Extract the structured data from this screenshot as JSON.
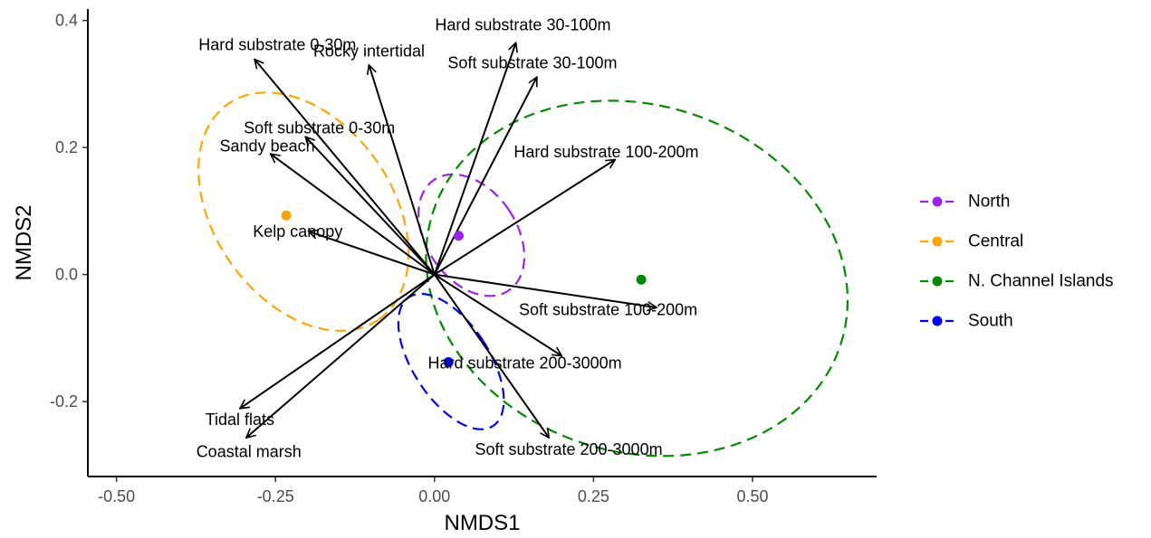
{
  "chart_data": {
    "type": "scatter",
    "xlabel": "NMDS1",
    "ylabel": "NMDS2",
    "xlim": [
      -0.545,
      0.695
    ],
    "ylim": [
      -0.318,
      0.418
    ],
    "x_ticks": [
      -0.5,
      -0.25,
      0.0,
      0.25,
      0.5
    ],
    "x_tick_labels": [
      "-0.50",
      "-0.25",
      "0.00",
      "0.25",
      "0.50"
    ],
    "y_ticks": [
      -0.2,
      0.0,
      0.2,
      0.4
    ],
    "y_tick_labels": [
      "-0.2",
      "0.0",
      "0.2",
      "0.4"
    ],
    "grid": false,
    "legend_position": "right",
    "series": [
      {
        "name": "North",
        "color": "#a020f0",
        "centroid": [
          0.038,
          0.061
        ],
        "ellipse": {
          "cx": 0.058,
          "cy": 0.062,
          "rx": 0.071,
          "ry": 0.105,
          "angle_deg": 34
        }
      },
      {
        "name": "Central",
        "color": "#ffa500",
        "centroid": [
          -0.233,
          0.093
        ],
        "ellipse": {
          "cx": -0.206,
          "cy": 0.099,
          "rx": 0.207,
          "ry": 0.14,
          "angle_deg": -55
        }
      },
      {
        "name": "N. Channel Islands",
        "color": "#008b00",
        "centroid": [
          0.325,
          -0.008
        ],
        "ellipse": {
          "cx": 0.318,
          "cy": -0.006,
          "rx": 0.337,
          "ry": 0.273,
          "angle_deg": -18
        }
      },
      {
        "name": "South",
        "color": "#0000ff",
        "centroid": [
          0.022,
          -0.138
        ],
        "ellipse": {
          "cx": 0.026,
          "cy": -0.137,
          "rx": 0.06,
          "ry": 0.121,
          "angle_deg": 33
        }
      }
    ],
    "vectors": [
      {
        "label": "Hard substrate 0-30m",
        "x": -0.283,
        "y": 0.339,
        "label_x": -0.247,
        "label_y": 0.362
      },
      {
        "label": "Rocky intertidal",
        "x": -0.103,
        "y": 0.33,
        "label_x": -0.103,
        "label_y": 0.352
      },
      {
        "label": "Hard substrate 30-100m",
        "x": 0.128,
        "y": 0.365,
        "label_x": 0.139,
        "label_y": 0.393
      },
      {
        "label": "Soft substrate 30-100m",
        "x": 0.161,
        "y": 0.311,
        "label_x": 0.154,
        "label_y": 0.333
      },
      {
        "label": "Soft substrate 0-30m",
        "x": -0.203,
        "y": 0.217,
        "label_x": -0.181,
        "label_y": 0.231
      },
      {
        "label": "Sandy beach",
        "x": -0.258,
        "y": 0.19,
        "label_x": -0.263,
        "label_y": 0.202
      },
      {
        "label": "Hard substrate 100-200m",
        "x": 0.284,
        "y": 0.181,
        "label_x": 0.27,
        "label_y": 0.193
      },
      {
        "label": "Kelp canopy",
        "x": -0.198,
        "y": 0.068,
        "label_x": -0.215,
        "label_y": 0.068
      },
      {
        "label": "Soft substrate 100-200m",
        "x": 0.349,
        "y": -0.052,
        "label_x": 0.273,
        "label_y": -0.055
      },
      {
        "label": "Hard substrate 200-3000m",
        "x": 0.2,
        "y": -0.128,
        "label_x": 0.142,
        "label_y": -0.139
      },
      {
        "label": "Tidal flats",
        "x": -0.306,
        "y": -0.211,
        "label_x": -0.306,
        "label_y": -0.228
      },
      {
        "label": "Coastal marsh",
        "x": -0.296,
        "y": -0.257,
        "label_x": -0.292,
        "label_y": -0.279
      },
      {
        "label": "Soft substrate 200-3000m",
        "x": 0.18,
        "y": -0.257,
        "label_x": 0.211,
        "label_y": -0.275
      }
    ]
  }
}
